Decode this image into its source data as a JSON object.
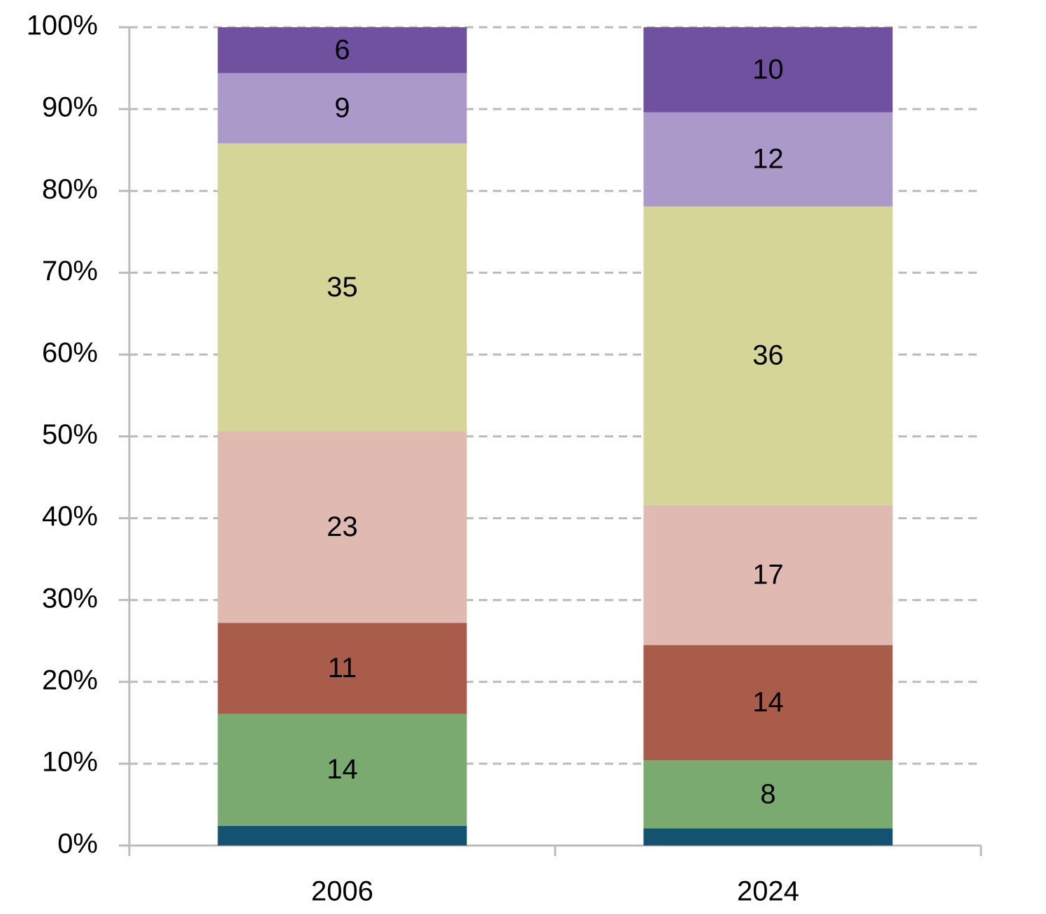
{
  "chart_data": {
    "type": "stacked_bar",
    "categories": [
      "2006",
      "2024"
    ],
    "series": [
      {
        "color": "#145272",
        "values": [
          2.4,
          2.1
        ]
      },
      {
        "color": "#7aaa70",
        "label_color": "#000000",
        "values": [
          13.7,
          8.3
        ],
        "value_labels": [
          "14",
          "8"
        ]
      },
      {
        "color": "#a95c4a",
        "label_color": "#000000",
        "values": [
          11.1,
          14.1
        ],
        "value_labels": [
          "11",
          "14"
        ]
      },
      {
        "color": "#e0bab0",
        "label_color": "#000000",
        "values": [
          23.4,
          17.1
        ],
        "value_labels": [
          "23",
          "17"
        ]
      },
      {
        "color": "#d4d597",
        "label_color": "#000000",
        "values": [
          35.2,
          36.5
        ],
        "value_labels": [
          "35",
          "36"
        ]
      },
      {
        "color": "#ab9ac9",
        "label_color": "#000000",
        "values": [
          8.6,
          11.5
        ],
        "value_labels": [
          "9",
          "12"
        ]
      },
      {
        "color": "#7051a0",
        "label_color": "#ffffff",
        "values": [
          5.6,
          10.4
        ],
        "value_labels": [
          "6",
          "10"
        ]
      }
    ],
    "ylim": [
      0,
      100
    ],
    "yticks": [
      {
        "value": 0,
        "label": "0%"
      },
      {
        "value": 10,
        "label": "10%"
      },
      {
        "value": 20,
        "label": "20%"
      },
      {
        "value": 30,
        "label": "30%"
      },
      {
        "value": 40,
        "label": "40%"
      },
      {
        "value": 50,
        "label": "50%"
      },
      {
        "value": 60,
        "label": "60%"
      },
      {
        "value": 70,
        "label": "70%"
      },
      {
        "value": 80,
        "label": "80%"
      },
      {
        "value": 90,
        "label": "90%"
      },
      {
        "value": 100,
        "label": "100%"
      }
    ],
    "grid": true
  }
}
